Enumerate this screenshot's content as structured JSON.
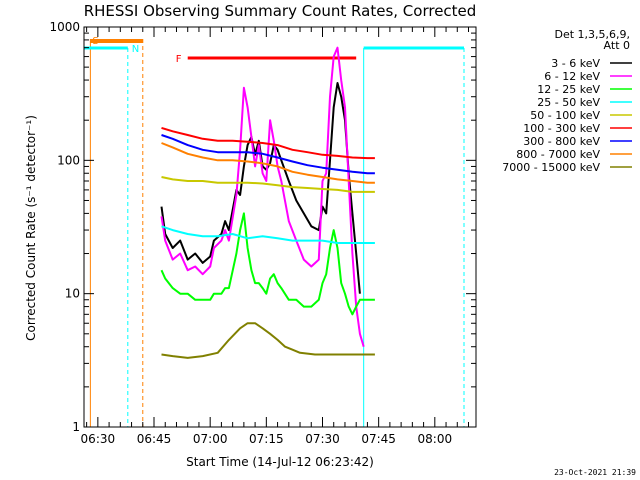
{
  "chart_data": {
    "type": "line",
    "title": "RHESSI Observing Summary Count Rates, Corrected",
    "xlabel": "Start Time (14-Jul-12 06:23:42)",
    "ylabel": "Corrected Count Rate (s⁻¹ detector⁻¹)",
    "y_scale": "log",
    "ylim": [
      1,
      1000
    ],
    "y_ticks": [
      1,
      10,
      100,
      1000
    ],
    "y_tick_labels": [
      "1",
      "10",
      "100",
      "1000"
    ],
    "xlim_minutes": [
      -3.7,
      101
    ],
    "x_ticks": [
      {
        "label": "06:30",
        "min": 0
      },
      {
        "label": "06:45",
        "min": 15
      },
      {
        "label": "07:00",
        "min": 30
      },
      {
        "label": "07:15",
        "min": 45
      },
      {
        "label": "07:30",
        "min": 60
      },
      {
        "label": "07:45",
        "min": 75
      },
      {
        "label": "08:00",
        "min": 90
      }
    ],
    "legend": {
      "placement": "right",
      "header": [
        "Det 1,3,5,6,9,",
        "Att 0"
      ],
      "entries": [
        {
          "label": "3 - 6 keV",
          "color": "#000000"
        },
        {
          "label": "6 - 12 keV",
          "color": "#ff00ff"
        },
        {
          "label": "12 - 25 keV",
          "color": "#00ff00"
        },
        {
          "label": "25 - 50 keV",
          "color": "#00ffff"
        },
        {
          "label": "50 - 100 keV",
          "color": "#c8c800"
        },
        {
          "label": "100 - 300 keV",
          "color": "#ff0000"
        },
        {
          "label": "300 - 800 keV",
          "color": "#0000ff"
        },
        {
          "label": "800 - 7000 keV",
          "color": "#ff8000"
        },
        {
          "label": "7000 - 15000 keV",
          "color": "#808000"
        }
      ]
    },
    "annotations": {
      "saa": {
        "label": "S",
        "start": -2,
        "end": 12,
        "color": "#ff8000"
      },
      "night": {
        "label": "N",
        "color": "#00ffff"
      },
      "flare": {
        "label": "F",
        "start": 24,
        "end": 69,
        "color": "#ff0000"
      }
    },
    "series": [
      {
        "name": "3 - 6 keV",
        "color": "#000000",
        "points": [
          [
            17,
            45
          ],
          [
            18,
            28
          ],
          [
            20,
            22
          ],
          [
            22,
            25
          ],
          [
            24,
            18
          ],
          [
            26,
            20
          ],
          [
            28,
            17
          ],
          [
            30,
            19
          ],
          [
            31,
            25
          ],
          [
            33,
            28
          ],
          [
            34,
            35
          ],
          [
            35,
            30
          ],
          [
            37,
            60
          ],
          [
            38,
            55
          ],
          [
            39,
            90
          ],
          [
            40,
            130
          ],
          [
            41,
            150
          ],
          [
            42,
            110
          ],
          [
            43,
            140
          ],
          [
            44,
            90
          ],
          [
            45,
            85
          ],
          [
            46,
            95
          ],
          [
            47,
            130
          ],
          [
            48,
            120
          ],
          [
            49,
            100
          ],
          [
            51,
            70
          ],
          [
            53,
            50
          ],
          [
            55,
            40
          ],
          [
            57,
            32
          ],
          [
            59,
            30
          ],
          [
            60,
            45
          ],
          [
            61,
            40
          ],
          [
            62,
            100
          ],
          [
            63,
            250
          ],
          [
            64,
            380
          ],
          [
            65,
            300
          ],
          [
            66,
            200
          ],
          [
            67,
            80
          ],
          [
            68,
            40
          ],
          [
            69,
            20
          ],
          [
            70,
            10
          ]
        ]
      },
      {
        "name": "6 - 12 keV",
        "color": "#ff00ff",
        "points": [
          [
            17,
            38
          ],
          [
            18,
            25
          ],
          [
            20,
            18
          ],
          [
            22,
            20
          ],
          [
            24,
            15
          ],
          [
            26,
            16
          ],
          [
            28,
            14
          ],
          [
            30,
            16
          ],
          [
            31,
            22
          ],
          [
            33,
            25
          ],
          [
            34,
            30
          ],
          [
            35,
            25
          ],
          [
            37,
            55
          ],
          [
            38,
            120
          ],
          [
            39,
            350
          ],
          [
            40,
            250
          ],
          [
            41,
            150
          ],
          [
            42,
            90
          ],
          [
            43,
            130
          ],
          [
            44,
            80
          ],
          [
            45,
            70
          ],
          [
            46,
            200
          ],
          [
            47,
            140
          ],
          [
            48,
            90
          ],
          [
            49,
            70
          ],
          [
            51,
            35
          ],
          [
            53,
            25
          ],
          [
            55,
            18
          ],
          [
            57,
            16
          ],
          [
            59,
            18
          ],
          [
            60,
            70
          ],
          [
            61,
            80
          ],
          [
            62,
            300
          ],
          [
            63,
            600
          ],
          [
            64,
            700
          ],
          [
            65,
            400
          ],
          [
            66,
            250
          ],
          [
            67,
            70
          ],
          [
            68,
            20
          ],
          [
            69,
            8
          ],
          [
            70,
            5
          ],
          [
            71,
            4
          ]
        ]
      },
      {
        "name": "12 - 25 keV",
        "color": "#00ff00",
        "points": [
          [
            17,
            15
          ],
          [
            18,
            13
          ],
          [
            20,
            11
          ],
          [
            22,
            10
          ],
          [
            24,
            10
          ],
          [
            26,
            9
          ],
          [
            28,
            9
          ],
          [
            30,
            9
          ],
          [
            31,
            10
          ],
          [
            33,
            10
          ],
          [
            34,
            11
          ],
          [
            35,
            11
          ],
          [
            37,
            20
          ],
          [
            38,
            30
          ],
          [
            39,
            40
          ],
          [
            40,
            22
          ],
          [
            41,
            15
          ],
          [
            42,
            12
          ],
          [
            43,
            12
          ],
          [
            44,
            11
          ],
          [
            45,
            10
          ],
          [
            46,
            13
          ],
          [
            47,
            14
          ],
          [
            48,
            12
          ],
          [
            49,
            11
          ],
          [
            51,
            9
          ],
          [
            53,
            9
          ],
          [
            55,
            8
          ],
          [
            57,
            8
          ],
          [
            59,
            9
          ],
          [
            60,
            12
          ],
          [
            61,
            14
          ],
          [
            62,
            22
          ],
          [
            63,
            30
          ],
          [
            64,
            22
          ],
          [
            65,
            12
          ],
          [
            66,
            10
          ],
          [
            67,
            8
          ],
          [
            68,
            7
          ],
          [
            69,
            8
          ],
          [
            70,
            9
          ],
          [
            72,
            9
          ],
          [
            74,
            9
          ]
        ]
      },
      {
        "name": "25 - 50 keV",
        "color": "#00ffff",
        "points": [
          [
            17,
            32
          ],
          [
            20,
            30
          ],
          [
            24,
            28
          ],
          [
            28,
            27
          ],
          [
            32,
            27
          ],
          [
            36,
            28
          ],
          [
            40,
            26
          ],
          [
            44,
            27
          ],
          [
            48,
            26
          ],
          [
            52,
            25
          ],
          [
            56,
            25
          ],
          [
            60,
            25
          ],
          [
            64,
            24
          ],
          [
            68,
            24
          ],
          [
            72,
            24
          ],
          [
            74,
            24
          ]
        ]
      },
      {
        "name": "50 - 100 keV",
        "color": "#c8c800",
        "points": [
          [
            17,
            75
          ],
          [
            20,
            72
          ],
          [
            24,
            70
          ],
          [
            28,
            70
          ],
          [
            32,
            68
          ],
          [
            36,
            68
          ],
          [
            40,
            68
          ],
          [
            44,
            67
          ],
          [
            48,
            65
          ],
          [
            52,
            63
          ],
          [
            56,
            62
          ],
          [
            60,
            61
          ],
          [
            64,
            60
          ],
          [
            68,
            58
          ],
          [
            72,
            58
          ],
          [
            74,
            58
          ]
        ]
      },
      {
        "name": "100 - 300 keV",
        "color": "#ff0000",
        "points": [
          [
            17,
            175
          ],
          [
            20,
            165
          ],
          [
            24,
            155
          ],
          [
            28,
            145
          ],
          [
            32,
            140
          ],
          [
            36,
            140
          ],
          [
            40,
            138
          ],
          [
            44,
            135
          ],
          [
            48,
            130
          ],
          [
            52,
            120
          ],
          [
            56,
            115
          ],
          [
            60,
            110
          ],
          [
            64,
            108
          ],
          [
            68,
            105
          ],
          [
            72,
            104
          ],
          [
            74,
            104
          ]
        ]
      },
      {
        "name": "300 - 800 keV",
        "color": "#0000ff",
        "points": [
          [
            17,
            155
          ],
          [
            20,
            145
          ],
          [
            24,
            130
          ],
          [
            28,
            120
          ],
          [
            32,
            115
          ],
          [
            36,
            115
          ],
          [
            40,
            115
          ],
          [
            44,
            112
          ],
          [
            48,
            105
          ],
          [
            52,
            98
          ],
          [
            56,
            92
          ],
          [
            60,
            88
          ],
          [
            64,
            85
          ],
          [
            68,
            82
          ],
          [
            72,
            80
          ],
          [
            74,
            80
          ]
        ]
      },
      {
        "name": "800 - 7000 keV",
        "color": "#ff8000",
        "points": [
          [
            17,
            135
          ],
          [
            20,
            125
          ],
          [
            24,
            112
          ],
          [
            28,
            105
          ],
          [
            32,
            100
          ],
          [
            36,
            100
          ],
          [
            40,
            98
          ],
          [
            44,
            95
          ],
          [
            48,
            90
          ],
          [
            52,
            82
          ],
          [
            56,
            78
          ],
          [
            60,
            75
          ],
          [
            64,
            72
          ],
          [
            68,
            70
          ],
          [
            72,
            68
          ],
          [
            74,
            68
          ]
        ]
      },
      {
        "name": "7000 - 15000 keV",
        "color": "#808000",
        "points": [
          [
            17,
            3.5
          ],
          [
            20,
            3.4
          ],
          [
            24,
            3.3
          ],
          [
            28,
            3.4
          ],
          [
            32,
            3.6
          ],
          [
            35,
            4.5
          ],
          [
            38,
            5.5
          ],
          [
            40,
            6
          ],
          [
            42,
            6
          ],
          [
            44,
            5.5
          ],
          [
            46,
            5
          ],
          [
            48,
            4.5
          ],
          [
            50,
            4
          ],
          [
            52,
            3.8
          ],
          [
            54,
            3.6
          ],
          [
            58,
            3.5
          ],
          [
            62,
            3.5
          ],
          [
            66,
            3.5
          ],
          [
            70,
            3.5
          ],
          [
            74,
            3.5
          ]
        ]
      }
    ]
  },
  "footer": {
    "timestamp": "23-Oct-2021 21:39"
  }
}
